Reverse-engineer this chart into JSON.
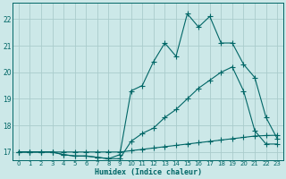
{
  "title": "",
  "xlabel": "Humidex (Indice chaleur)",
  "ylabel": "",
  "bg_color": "#cce8e8",
  "grid_color": "#aacccc",
  "line_color": "#006666",
  "xlim": [
    -0.5,
    23.5
  ],
  "ylim": [
    16.7,
    22.6
  ],
  "yticks": [
    17,
    18,
    19,
    20,
    21,
    22
  ],
  "xticks": [
    0,
    1,
    2,
    3,
    4,
    5,
    6,
    7,
    8,
    9,
    10,
    11,
    12,
    13,
    14,
    15,
    16,
    17,
    18,
    19,
    20,
    21,
    22,
    23
  ],
  "series1_x": [
    0,
    1,
    2,
    3,
    4,
    5,
    6,
    7,
    8,
    9,
    10,
    11,
    12,
    13,
    14,
    15,
    16,
    17,
    18,
    19,
    20,
    21,
    22,
    23
  ],
  "series1_y": [
    17.0,
    17.0,
    17.0,
    17.0,
    17.0,
    17.0,
    17.0,
    17.0,
    17.0,
    17.0,
    17.05,
    17.1,
    17.15,
    17.2,
    17.25,
    17.3,
    17.35,
    17.4,
    17.45,
    17.5,
    17.55,
    17.6,
    17.62,
    17.63
  ],
  "series2_x": [
    0,
    1,
    2,
    3,
    4,
    5,
    6,
    7,
    8,
    9,
    10,
    11,
    12,
    13,
    14,
    15,
    16,
    17,
    18,
    19,
    20,
    21,
    22,
    23
  ],
  "series2_y": [
    17.0,
    17.0,
    17.0,
    17.0,
    16.9,
    16.85,
    16.85,
    16.8,
    16.75,
    16.75,
    17.4,
    17.7,
    17.9,
    18.3,
    18.6,
    19.0,
    19.4,
    19.7,
    20.0,
    20.2,
    19.3,
    17.8,
    17.3,
    17.3
  ],
  "series3_x": [
    0,
    1,
    2,
    3,
    4,
    5,
    6,
    7,
    8,
    9,
    10,
    11,
    12,
    13,
    14,
    15,
    16,
    17,
    18,
    19,
    20,
    21,
    22,
    23
  ],
  "series3_y": [
    17.0,
    17.0,
    17.0,
    17.0,
    16.9,
    16.85,
    16.85,
    16.8,
    16.75,
    16.9,
    19.3,
    19.5,
    20.4,
    21.1,
    20.6,
    22.2,
    21.7,
    22.1,
    21.1,
    21.1,
    20.3,
    19.8,
    18.3,
    17.5
  ]
}
